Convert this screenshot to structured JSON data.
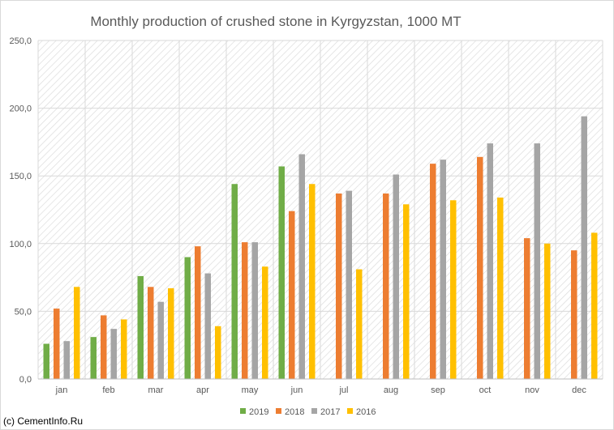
{
  "chart_data": {
    "type": "bar",
    "title": "Monthly production of crushed stone in Kyrgyzstan, 1000 MT",
    "xlabel": "",
    "ylabel": "",
    "categories": [
      "jan",
      "feb",
      "mar",
      "apr",
      "may",
      "jun",
      "jul",
      "aug",
      "sep",
      "oct",
      "nov",
      "dec"
    ],
    "ylim": [
      0,
      250
    ],
    "yticks": [
      0,
      50,
      100,
      150,
      200,
      250
    ],
    "ytick_labels": [
      "0,0",
      "50,0",
      "100,0",
      "150,0",
      "200,0",
      "250,0"
    ],
    "grid": true,
    "legend_position": "bottom",
    "series": [
      {
        "name": "2019",
        "color": "#70ad47",
        "values": [
          26,
          31,
          76,
          90,
          144,
          157,
          null,
          null,
          null,
          null,
          null,
          null
        ]
      },
      {
        "name": "2018",
        "color": "#ed7d31",
        "values": [
          52,
          47,
          68,
          98,
          101,
          124,
          137,
          137,
          159,
          164,
          104,
          95
        ]
      },
      {
        "name": "2017",
        "color": "#a5a5a5",
        "values": [
          28,
          37,
          57,
          78,
          101,
          166,
          139,
          151,
          162,
          174,
          174,
          194
        ]
      },
      {
        "name": "2016",
        "color": "#ffc000",
        "values": [
          68,
          44,
          67,
          39,
          83,
          144,
          81,
          129,
          132,
          134,
          100,
          108
        ]
      }
    ]
  },
  "credit": "(c) CementInfo.Ru"
}
